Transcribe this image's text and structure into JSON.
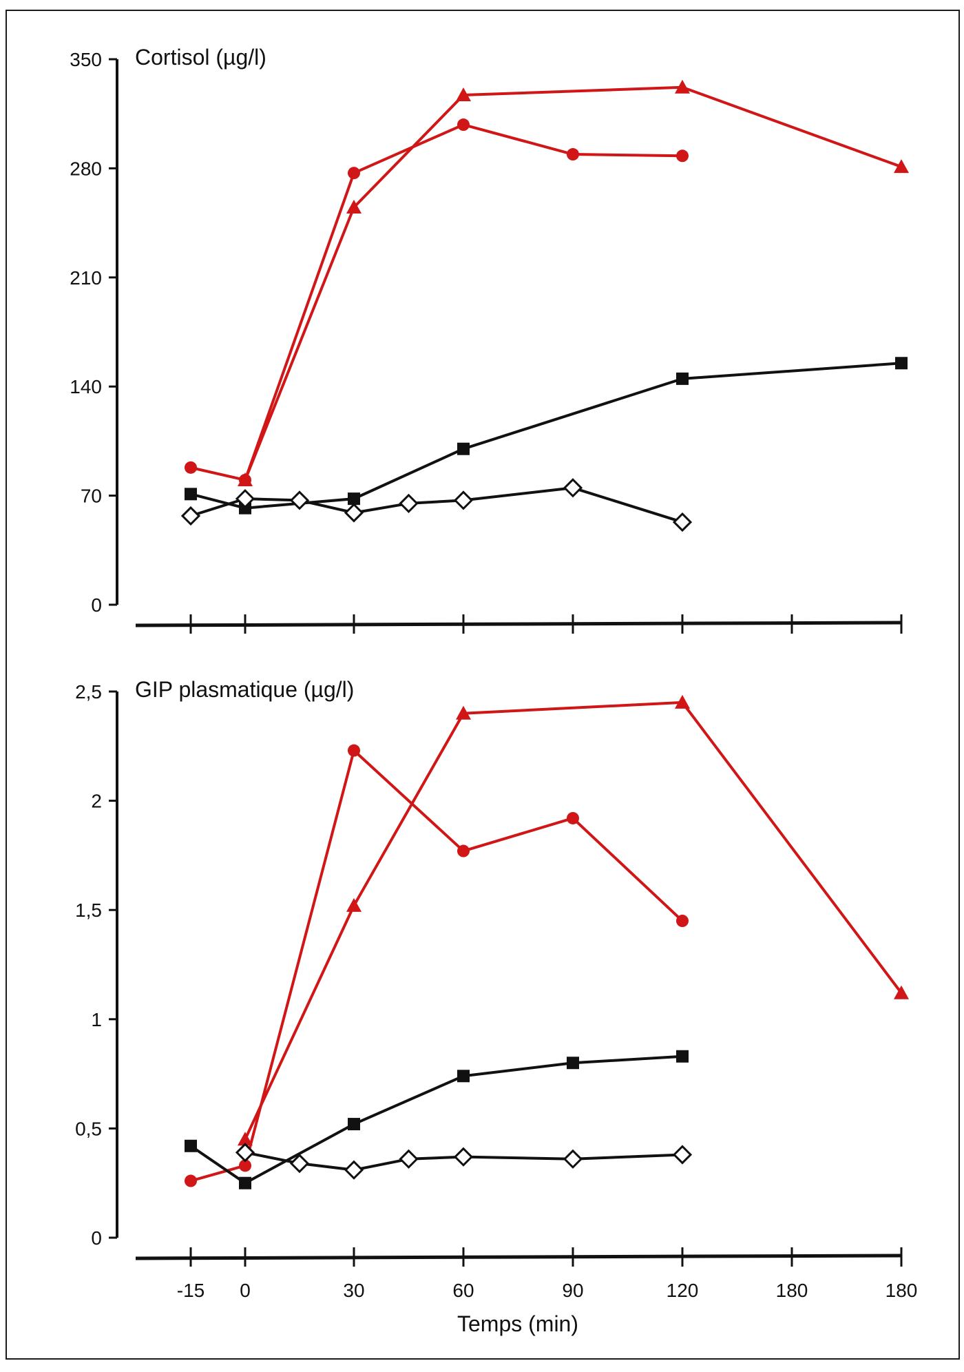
{
  "colors": {
    "red": "#d01616",
    "black": "#111111",
    "background": "#ffffff"
  },
  "chart_data": [
    {
      "type": "line",
      "ylabel": "Cortisol (µg/l)",
      "yticks": [
        "350",
        "280",
        "210",
        "140",
        "70",
        "0"
      ],
      "ylim": [
        0,
        350
      ],
      "xtick_labels": [],
      "series": [
        {
          "marker": "circle",
          "color": "#d01616",
          "points": [
            [
              -15,
              88
            ],
            [
              0,
              80
            ],
            [
              30,
              277
            ],
            [
              60,
              308
            ],
            [
              90,
              289
            ],
            [
              120,
              288
            ]
          ]
        },
        {
          "marker": "triangle",
          "color": "#d01616",
          "points": [
            [
              0,
              80
            ],
            [
              30,
              255
            ],
            [
              60,
              327
            ],
            [
              120,
              332
            ],
            [
              180,
              281
            ]
          ]
        },
        {
          "marker": "square",
          "color": "#111111",
          "points": [
            [
              -15,
              71
            ],
            [
              0,
              62
            ],
            [
              30,
              68
            ],
            [
              60,
              100
            ],
            [
              120,
              145
            ],
            [
              180,
              155
            ]
          ]
        },
        {
          "marker": "diamond",
          "color": "#111111",
          "points": [
            [
              -15,
              57
            ],
            [
              0,
              68
            ],
            [
              15,
              67
            ],
            [
              30,
              59
            ],
            [
              45,
              65
            ],
            [
              60,
              67
            ],
            [
              90,
              75
            ],
            [
              120,
              53
            ]
          ]
        }
      ]
    },
    {
      "type": "line",
      "ylabel": "GIP plasmatique (µg/l)",
      "xlabel": "Temps (min)",
      "yticks": [
        "2,5",
        "2",
        "1,5",
        "1",
        "0,5",
        "0"
      ],
      "ylim": [
        0,
        2.5
      ],
      "xtick_labels": [
        "-15",
        "0",
        "30",
        "60",
        "90",
        "120",
        "180",
        "180"
      ],
      "series": [
        {
          "marker": "circle",
          "color": "#d01616",
          "points": [
            [
              -15,
              0.26
            ],
            [
              0,
              0.33
            ],
            [
              30,
              2.23
            ],
            [
              60,
              1.77
            ],
            [
              90,
              1.92
            ],
            [
              120,
              1.45
            ]
          ]
        },
        {
          "marker": "triangle",
          "color": "#d01616",
          "points": [
            [
              0,
              0.45
            ],
            [
              30,
              1.52
            ],
            [
              60,
              2.4
            ],
            [
              120,
              2.45
            ],
            [
              180,
              1.12
            ]
          ]
        },
        {
          "marker": "square",
          "color": "#111111",
          "points": [
            [
              -15,
              0.42
            ],
            [
              0,
              0.25
            ],
            [
              30,
              0.52
            ],
            [
              60,
              0.74
            ],
            [
              90,
              0.8
            ],
            [
              120,
              0.83
            ]
          ]
        },
        {
          "marker": "diamond",
          "color": "#111111",
          "points": [
            [
              0,
              0.39
            ],
            [
              15,
              0.34
            ],
            [
              30,
              0.31
            ],
            [
              45,
              0.36
            ],
            [
              60,
              0.37
            ],
            [
              90,
              0.36
            ],
            [
              120,
              0.38
            ]
          ]
        }
      ]
    }
  ]
}
